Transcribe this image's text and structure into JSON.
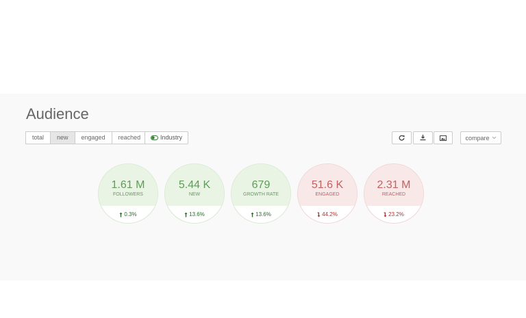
{
  "header": {
    "title": "Audience"
  },
  "tabs": [
    {
      "label": "total",
      "active": false
    },
    {
      "label": "new",
      "active": true
    },
    {
      "label": "engaged",
      "active": false
    },
    {
      "label": "reached",
      "active": false
    }
  ],
  "toggle": {
    "label": "Industry",
    "on": true
  },
  "compare": {
    "label": "compare"
  },
  "metrics": [
    {
      "value": "1.61 M",
      "label": "FOLLOWERS",
      "change": "0.3%",
      "trend": "up"
    },
    {
      "value": "5.44 K",
      "label": "NEW",
      "change": "13.6%",
      "trend": "up"
    },
    {
      "value": "679",
      "label": "GROWTH RATE",
      "change": "13.6%",
      "trend": "up"
    },
    {
      "value": "51.6 K",
      "label": "ENGAGED",
      "change": "44.2%",
      "trend": "down"
    },
    {
      "value": "2.31 M",
      "label": "REACHED",
      "change": "23.2%",
      "trend": "down"
    }
  ]
}
